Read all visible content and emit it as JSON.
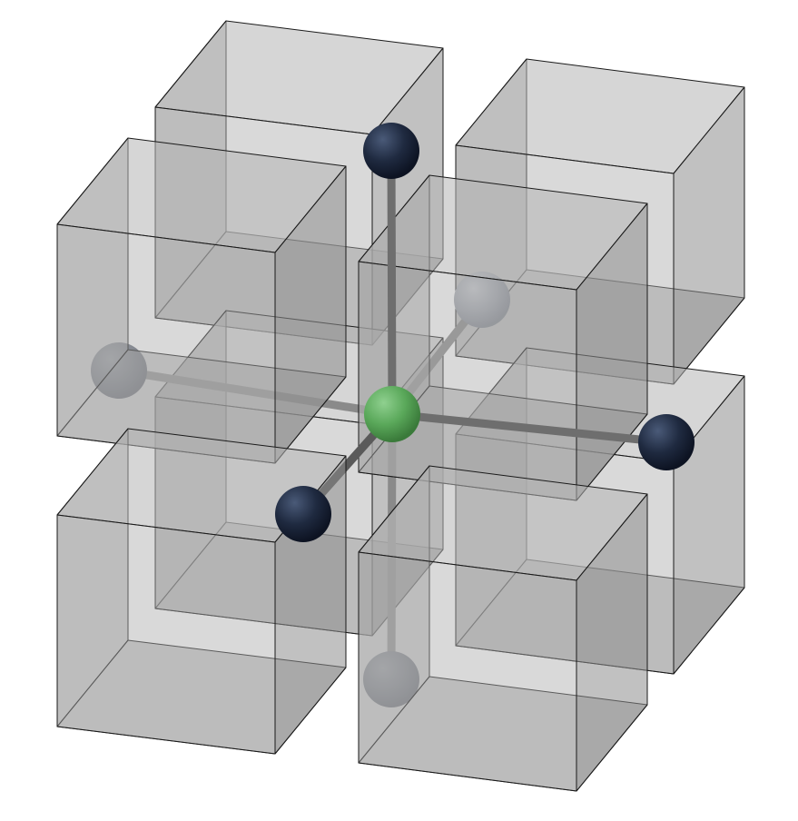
{
  "diagram": {
    "type": "octahedral-coordination-in-cubic-lattice",
    "box_count": 8,
    "colors": {
      "background": "#ffffff",
      "box_fill": "#9a9a9a",
      "box_edge": "#1a1a1a",
      "center_atom": "#5aa85a",
      "ligand_atom": "#1f2a40",
      "bond": "#7a7a7a"
    },
    "atoms": {
      "center": {
        "name": "center-atom",
        "color": "#5aa85a"
      },
      "ligands": [
        {
          "name": "ligand-top",
          "color": "#1f2a40",
          "depth": "front"
        },
        {
          "name": "ligand-bottom",
          "color": "#6b7280",
          "depth": "back"
        },
        {
          "name": "ligand-left",
          "color": "#7a8191",
          "depth": "back"
        },
        {
          "name": "ligand-right",
          "color": "#1f2a40",
          "depth": "front"
        },
        {
          "name": "ligand-front-left",
          "color": "#1f2a40",
          "depth": "front"
        },
        {
          "name": "ligand-back-right",
          "color": "#a0a4ac",
          "depth": "back"
        }
      ]
    }
  }
}
